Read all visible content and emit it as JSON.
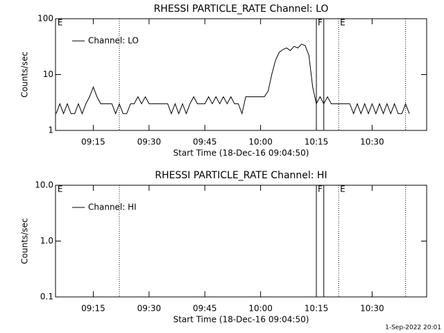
{
  "chart_data": [
    {
      "type": "line",
      "title": "RHESSI PARTICLE_RATE Channel: LO",
      "xlabel": "Start Time (18-Dec-16 09:04:50)",
      "ylabel": "Counts/sec",
      "log_y": true,
      "ylim": [
        1,
        100
      ],
      "yticks": [
        1,
        10,
        100
      ],
      "xlim": [
        "09:04:50",
        "10:44:40"
      ],
      "xticks": [
        "09:15",
        "09:30",
        "09:45",
        "10:00",
        "10:15",
        "10:30"
      ],
      "legend": "upper left",
      "x": [
        "09:05",
        "09:06",
        "09:07",
        "09:08",
        "09:09",
        "09:10",
        "09:11",
        "09:12",
        "09:13",
        "09:14",
        "09:15",
        "09:16",
        "09:17",
        "09:18",
        "09:19",
        "09:20",
        "09:21",
        "09:22",
        "09:23",
        "09:24",
        "09:25",
        "09:26",
        "09:27",
        "09:28",
        "09:29",
        "09:30",
        "09:31",
        "09:32",
        "09:33",
        "09:34",
        "09:35",
        "09:36",
        "09:37",
        "09:38",
        "09:39",
        "09:40",
        "09:41",
        "09:42",
        "09:43",
        "09:44",
        "09:45",
        "09:46",
        "09:47",
        "09:48",
        "09:49",
        "09:50",
        "09:51",
        "09:52",
        "09:53",
        "09:54",
        "09:55",
        "09:56",
        "09:57",
        "09:58",
        "09:59",
        "10:00",
        "10:01",
        "10:02",
        "10:03",
        "10:04",
        "10:05",
        "10:06",
        "10:07",
        "10:08",
        "10:09",
        "10:10",
        "10:11",
        "10:12",
        "10:13",
        "10:14",
        "10:15",
        "10:16",
        "10:17",
        "10:18",
        "10:19",
        "10:20",
        "10:21",
        "10:22",
        "10:23",
        "10:24",
        "10:25",
        "10:26",
        "10:27",
        "10:28",
        "10:29",
        "10:30",
        "10:31",
        "10:32",
        "10:33",
        "10:34",
        "10:35",
        "10:36",
        "10:37",
        "10:38",
        "10:39",
        "10:40"
      ],
      "series": [
        {
          "name": "Channel: LO",
          "color": "#000000",
          "values": [
            2,
            3,
            2,
            3,
            2,
            2,
            3,
            2,
            3,
            4,
            6,
            4,
            3,
            3,
            3,
            3,
            2,
            3,
            2,
            2,
            3,
            3,
            4,
            3,
            4,
            3,
            3,
            3,
            3,
            3,
            3,
            2,
            3,
            2,
            3,
            2,
            3,
            4,
            3,
            3,
            3,
            4,
            3,
            4,
            3,
            4,
            3,
            4,
            3,
            3,
            2,
            4,
            4,
            4,
            4,
            4,
            4,
            5,
            10,
            18,
            25,
            28,
            30,
            27,
            32,
            30,
            35,
            33,
            22,
            6,
            3,
            4,
            3,
            4,
            3,
            3,
            3,
            3,
            3,
            3,
            2,
            3,
            2,
            3,
            2,
            3,
            2,
            3,
            2,
            3,
            2,
            3,
            2,
            2,
            3,
            2
          ]
        }
      ],
      "annotations": [
        {
          "x": "09:05",
          "label": "E"
        },
        {
          "x": "09:22",
          "style": "dotted"
        },
        {
          "x": "10:15",
          "style": "solid",
          "label": "F"
        },
        {
          "x": "10:17",
          "style": "solid"
        },
        {
          "x": "10:21",
          "style": "dotted",
          "label": "E"
        },
        {
          "x": "10:39",
          "style": "dotted"
        }
      ]
    },
    {
      "type": "line",
      "title": "RHESSI PARTICLE_RATE Channel: HI",
      "xlabel": "Start Time (18-Dec-16 09:04:50)",
      "ylabel": "Counts/sec",
      "log_y": true,
      "ylim": [
        0.1,
        10
      ],
      "yticks": [
        0.1,
        {
          "value": 1,
          "label": "1.0"
        },
        {
          "value": 10,
          "label": "10.0"
        }
      ],
      "xlim": [
        "09:04:50",
        "10:44:40"
      ],
      "xticks": [
        "09:15",
        "09:30",
        "09:45",
        "10:00",
        "10:15",
        "10:30"
      ],
      "legend": "upper left",
      "x": [],
      "series": [
        {
          "name": "Channel: HI",
          "color": "#000000",
          "values": []
        }
      ],
      "annotations": [
        {
          "x": "09:05",
          "label": "E"
        },
        {
          "x": "09:22",
          "style": "dotted"
        },
        {
          "x": "10:15",
          "style": "solid",
          "label": "F"
        },
        {
          "x": "10:17",
          "style": "solid"
        },
        {
          "x": "10:21",
          "style": "dotted",
          "label": "E"
        },
        {
          "x": "10:39",
          "style": "dotted"
        }
      ]
    }
  ],
  "footer": "1-Sep-2022 20:01"
}
